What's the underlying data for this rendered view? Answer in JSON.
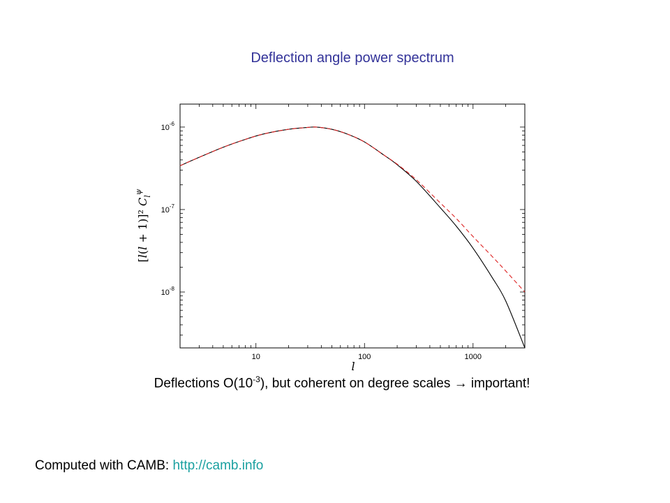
{
  "slide": {
    "title": "Deflection angle power spectrum",
    "caption": {
      "prefix": "Deflections O(10",
      "exponent": "-3",
      "suffix": "), but coherent on degree scales",
      "arrow": "→",
      "end": "important!"
    },
    "footer": {
      "text": "Computed with CAMB: ",
      "link": "http://camb.info"
    }
  },
  "chart_data": {
    "type": "line",
    "title": "",
    "xlabel": "l",
    "ylabel": "[l(l+1)]²C_l^ψ",
    "x_scale": "log",
    "y_scale": "log",
    "xlim": [
      2,
      3000
    ],
    "ylim": [
      2.1e-09,
      1.9e-06
    ],
    "x_ticks": [
      10,
      100,
      1000
    ],
    "x_tick_labels": [
      "10",
      "100",
      "1000"
    ],
    "y_ticks": [
      1e-08,
      1e-07,
      1e-06
    ],
    "y_tick_labels": [
      {
        "base": "10",
        "exp": "-8"
      },
      {
        "base": "10",
        "exp": "-7"
      },
      {
        "base": "10",
        "exp": "-6"
      }
    ],
    "grid": false,
    "series": [
      {
        "style": "solid",
        "color": "#000000",
        "x": [
          2,
          3,
          5,
          8,
          12,
          20,
          30,
          36,
          50,
          70,
          100,
          150,
          200,
          300,
          500,
          700,
          1000,
          1500,
          2000,
          3000
        ],
        "y": [
          3.4e-07,
          4.3e-07,
          5.7e-07,
          7.1e-07,
          8.3e-07,
          9.4e-07,
          9.9e-07,
          1e-06,
          9.4e-07,
          8.2e-07,
          6.6e-07,
          4.6e-07,
          3.5e-07,
          2.2e-07,
          1.05e-07,
          6.3e-08,
          3.4e-08,
          1.5e-08,
          7.8e-09,
          2.1e-09
        ]
      },
      {
        "style": "dashed",
        "color": "#dd2222",
        "x": [
          2,
          3,
          5,
          8,
          12,
          20,
          30,
          36,
          50,
          70,
          100,
          150,
          200,
          300,
          500,
          700,
          1000,
          1500,
          2000,
          3000
        ],
        "y": [
          3.4e-07,
          4.3e-07,
          5.7e-07,
          7.1e-07,
          8.3e-07,
          9.4e-07,
          9.9e-07,
          1e-06,
          9.4e-07,
          8.2e-07,
          6.6e-07,
          4.6e-07,
          3.55e-07,
          2.3e-07,
          1.2e-07,
          7.8e-08,
          4.7e-08,
          2.7e-08,
          1.8e-08,
          1e-08
        ]
      }
    ]
  }
}
